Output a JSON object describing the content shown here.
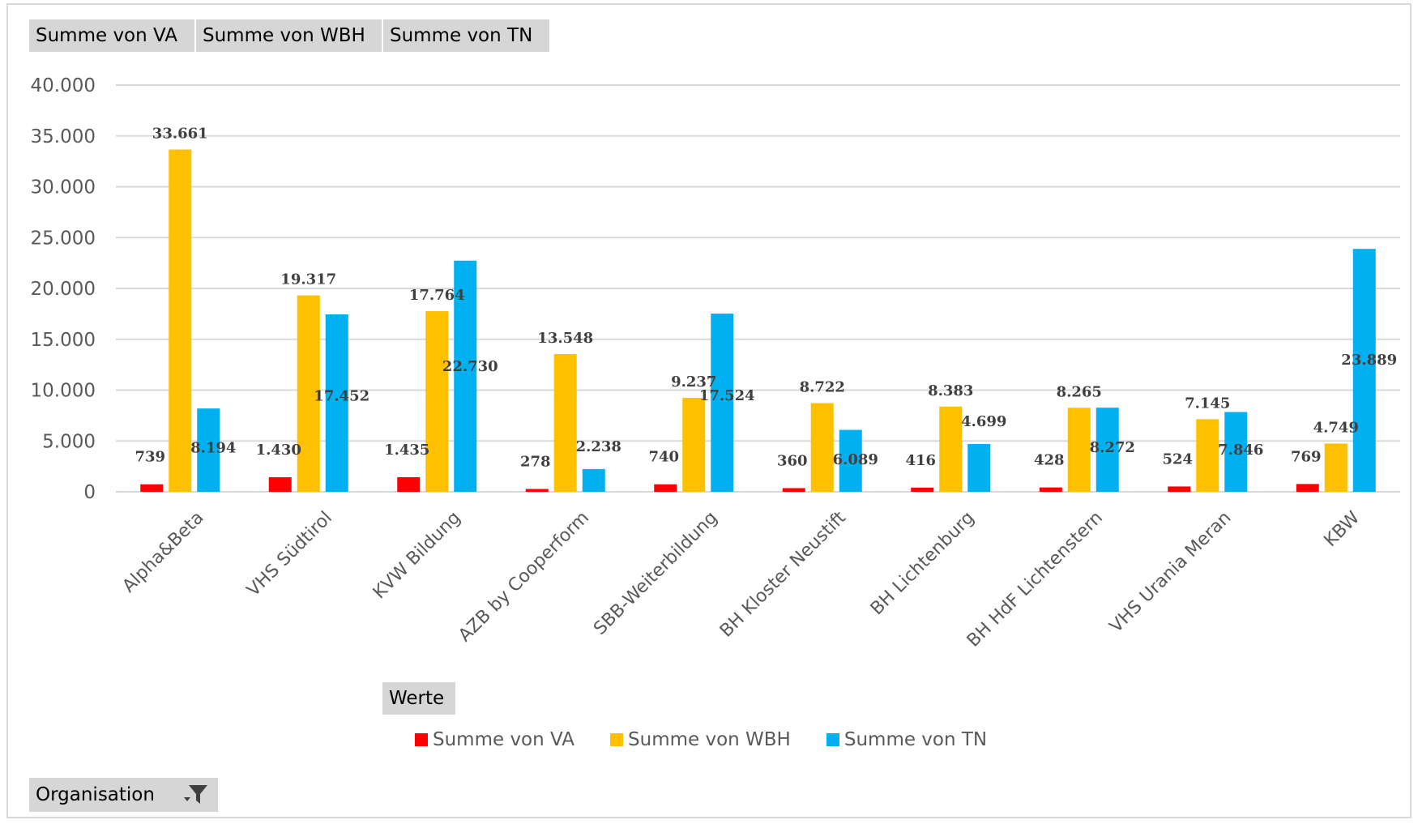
{
  "field_buttons": {
    "va": "Summe von VA",
    "wbh": "Summe von WBH",
    "tn": "Summe von TN",
    "werte": "Werte",
    "organisation": "Organisation"
  },
  "icons": {
    "filter": "filter-funnel-icon"
  },
  "chart_data": {
    "type": "bar",
    "title": "",
    "xlabel": "",
    "ylabel": "",
    "ylim": [
      0,
      40000
    ],
    "yticks": [
      0,
      5000,
      10000,
      15000,
      20000,
      25000,
      30000,
      35000,
      40000
    ],
    "ytick_labels": [
      "0",
      "5.000",
      "10.000",
      "15.000",
      "20.000",
      "25.000",
      "30.000",
      "35.000",
      "40.000"
    ],
    "grid": true,
    "legend_position": "bottom",
    "categories": [
      "Alpha&Beta",
      "VHS Südtirol",
      "KVW Bildung",
      "AZB by Cooperform",
      "SBB-Weiterbildung",
      "BH Kloster Neustift",
      "BH Lichtenburg",
      "BH HdF Lichtenstern",
      "VHS Urania Meran",
      "KBW"
    ],
    "series": [
      {
        "name": "Summe von VA",
        "color": "#ff0000",
        "values": [
          739,
          1430,
          1435,
          278,
          740,
          360,
          416,
          428,
          524,
          769
        ],
        "labels": [
          "739",
          "1.430",
          "1.435",
          "278",
          "740",
          "360",
          "416",
          "428",
          "524",
          "769"
        ]
      },
      {
        "name": "Summe von WBH",
        "color": "#ffc000",
        "values": [
          33661,
          19317,
          17764,
          13548,
          9237,
          8722,
          8383,
          8265,
          7145,
          4749
        ],
        "labels": [
          "33.661",
          "19.317",
          "17.764",
          "13.548",
          "9.237",
          "8.722",
          "8.383",
          "8.265",
          "7.145",
          "4.749"
        ]
      },
      {
        "name": "Summe von TN",
        "color": "#00b0f0",
        "values": [
          8194,
          17452,
          22730,
          2238,
          17524,
          6089,
          4699,
          8272,
          7846,
          23889
        ],
        "labels": [
          "8.194",
          "17.452",
          "22.730",
          "2.238",
          "17.524",
          "6.089",
          "4.699",
          "8.272",
          "7.846",
          "23.889"
        ]
      }
    ]
  }
}
